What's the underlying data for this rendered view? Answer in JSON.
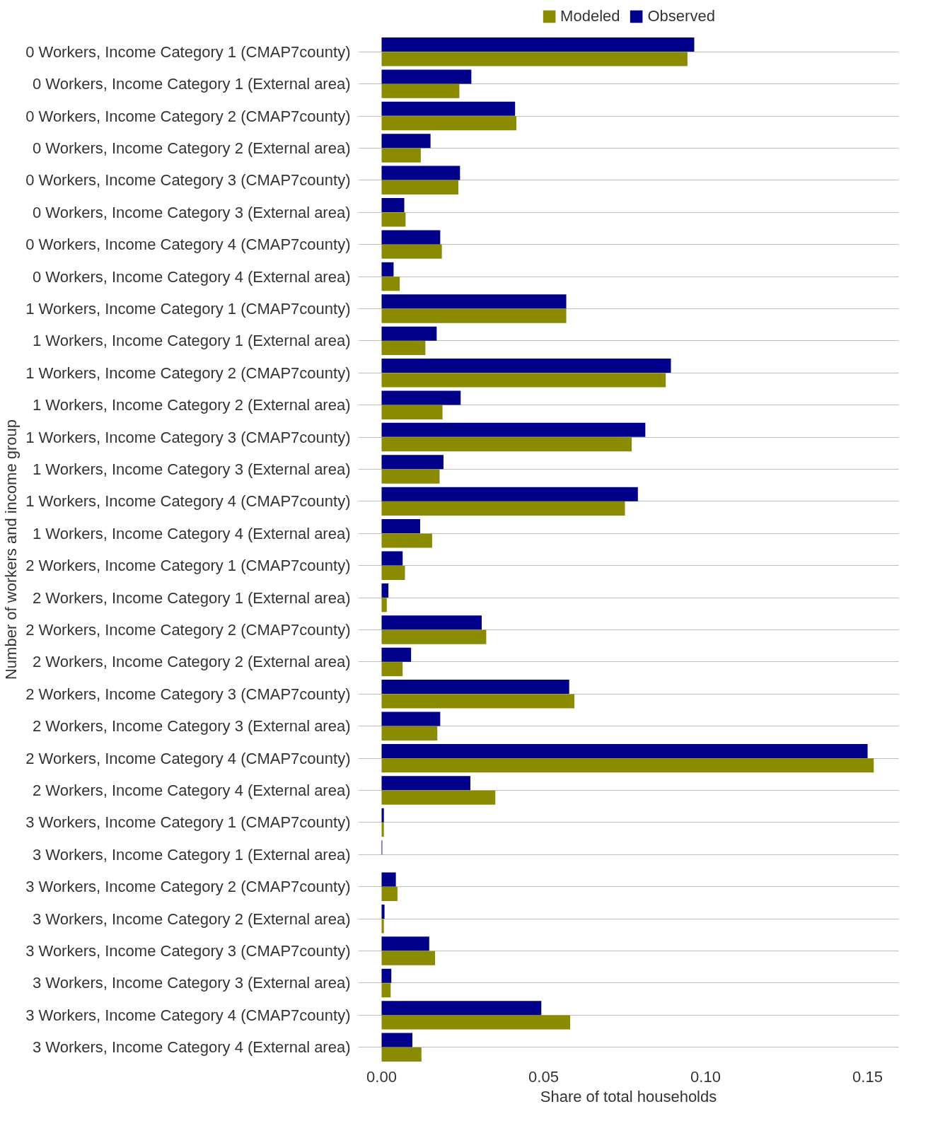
{
  "chart_data": {
    "type": "bar",
    "orientation": "horizontal",
    "xlabel": "Share of total households",
    "ylabel": "Number of workers and income group",
    "categories": [
      "0 Workers, Income Category 1 (CMAP7county)",
      "0 Workers, Income Category 1 (External area)",
      "0 Workers, Income Category 2 (CMAP7county)",
      "0 Workers, Income Category 2 (External area)",
      "0 Workers, Income Category 3 (CMAP7county)",
      "0 Workers, Income Category 3 (External area)",
      "0 Workers, Income Category 4 (CMAP7county)",
      "0 Workers, Income Category 4 (External area)",
      "1 Workers, Income Category 1 (CMAP7county)",
      "1 Workers, Income Category 1 (External area)",
      "1 Workers, Income Category 2 (CMAP7county)",
      "1 Workers, Income Category 2 (External area)",
      "1 Workers, Income Category 3 (CMAP7county)",
      "1 Workers, Income Category 3 (External area)",
      "1 Workers, Income Category 4 (CMAP7county)",
      "1 Workers, Income Category 4 (External area)",
      "2 Workers, Income Category 1 (CMAP7county)",
      "2 Workers, Income Category 1 (External area)",
      "2 Workers, Income Category 2 (CMAP7county)",
      "2 Workers, Income Category 2 (External area)",
      "2 Workers, Income Category 3 (CMAP7county)",
      "2 Workers, Income Category 3 (External area)",
      "2 Workers, Income Category 4 (CMAP7county)",
      "2 Workers, Income Category 4 (External area)",
      "3 Workers, Income Category 1 (CMAP7county)",
      "3 Workers, Income Category 1 (External area)",
      "3 Workers, Income Category 2 (CMAP7county)",
      "3 Workers, Income Category 2 (External area)",
      "3 Workers, Income Category 3 (CMAP7county)",
      "3 Workers, Income Category 3 (External area)",
      "3 Workers, Income Category 4 (CMAP7county)",
      "3 Workers, Income Category 4 (External area)"
    ],
    "series": [
      {
        "name": "Modeled",
        "color": "#8b8b00",
        "values": [
          0.0944,
          0.024,
          0.0416,
          0.0121,
          0.0237,
          0.0074,
          0.0186,
          0.0056,
          0.057,
          0.0135,
          0.0877,
          0.0188,
          0.0772,
          0.0179,
          0.0751,
          0.0156,
          0.0072,
          0.0016,
          0.0323,
          0.0065,
          0.0595,
          0.0172,
          0.1519,
          0.0351,
          0.0007,
          null,
          0.0049,
          0.0007,
          0.0165,
          0.0028,
          0.0582,
          0.0123
        ]
      },
      {
        "name": "Observed",
        "color": "#00008b",
        "values": [
          0.0965,
          0.0277,
          0.0412,
          0.0151,
          0.0242,
          0.007,
          0.0181,
          0.0037,
          0.057,
          0.017,
          0.0893,
          0.0244,
          0.0814,
          0.0191,
          0.0791,
          0.0119,
          0.0065,
          0.0021,
          0.0309,
          0.0091,
          0.0579,
          0.0181,
          0.15,
          0.0274,
          0.0007,
          0.0002,
          0.0044,
          0.0009,
          0.0147,
          0.003,
          0.0493,
          0.0095
        ]
      }
    ],
    "xlim": [
      -0.0072,
      0.1596
    ],
    "xticks": [
      {
        "value": 0,
        "label": "0.00"
      },
      {
        "value": 0.05,
        "label": "0.05"
      },
      {
        "value": 0.1,
        "label": "0.10"
      },
      {
        "value": 0.15,
        "label": "0.15"
      }
    ],
    "grid": "y",
    "legend": "top"
  }
}
